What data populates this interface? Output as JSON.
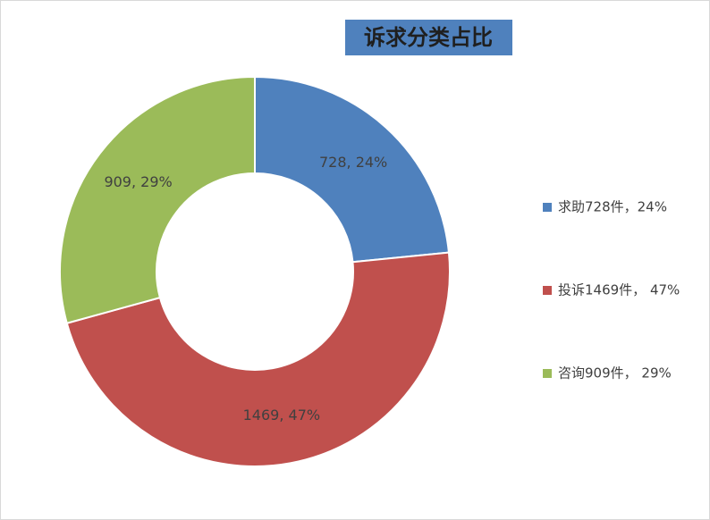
{
  "chart_data": {
    "type": "donut",
    "title": "诉求分类占比",
    "categories": [
      "求助728件，24%",
      "投诉1469件， 47%",
      "咨询909件， 29%"
    ],
    "values": [
      728,
      1469,
      909
    ],
    "value_labels": [
      "728, 24%",
      "1469, 47%",
      "909, 29%"
    ],
    "colors": [
      "#4f81bd",
      "#c0504d",
      "#9bbb59"
    ],
    "legend": "right"
  }
}
